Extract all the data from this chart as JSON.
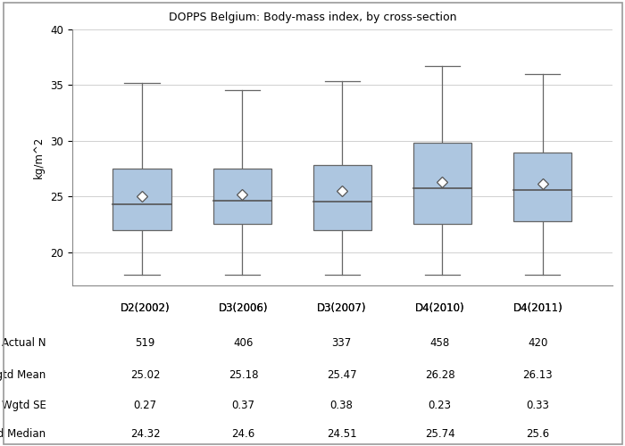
{
  "title": "DOPPS Belgium: Body-mass index, by cross-section",
  "ylabel": "kg/m^2",
  "categories": [
    "D2(2002)",
    "D3(2006)",
    "D3(2007)",
    "D4(2010)",
    "D4(2011)"
  ],
  "actual_n": [
    "519",
    "406",
    "337",
    "458",
    "420"
  ],
  "wgtd_mean": [
    "25.02",
    "25.18",
    "25.47",
    "26.28",
    "26.13"
  ],
  "wgtd_se": [
    "0.27",
    "0.37",
    "0.38",
    "0.23",
    "0.33"
  ],
  "wgtd_median": [
    "24.32",
    "24.6",
    "24.51",
    "25.74",
    "25.6"
  ],
  "box_q1": [
    22.0,
    22.5,
    22.0,
    22.5,
    22.8
  ],
  "box_median": [
    24.3,
    24.6,
    24.5,
    25.7,
    25.6
  ],
  "box_q3": [
    27.5,
    27.5,
    27.8,
    29.8,
    28.9
  ],
  "box_whislo": [
    18.0,
    18.0,
    18.0,
    18.0,
    18.0
  ],
  "box_whishi": [
    35.2,
    34.5,
    35.3,
    36.7,
    36.0
  ],
  "box_mean": [
    25.02,
    25.18,
    25.47,
    26.28,
    26.13
  ],
  "box_color": "#adc6e0",
  "box_edge_color": "#666666",
  "median_line_color": "#555555",
  "whisker_color": "#666666",
  "mean_marker_facecolor": "#ffffff",
  "mean_marker_edgecolor": "#555555",
  "grid_color": "#d0d0d0",
  "background_color": "#ffffff",
  "border_color": "#999999",
  "ylim": [
    17,
    40
  ],
  "yticks": [
    20,
    25,
    30,
    35,
    40
  ],
  "table_row_labels": [
    "Actual N",
    "Wgtd Mean",
    "Wgtd SE",
    "Wgtd Median"
  ],
  "font_size": 8.5,
  "title_font_size": 9
}
